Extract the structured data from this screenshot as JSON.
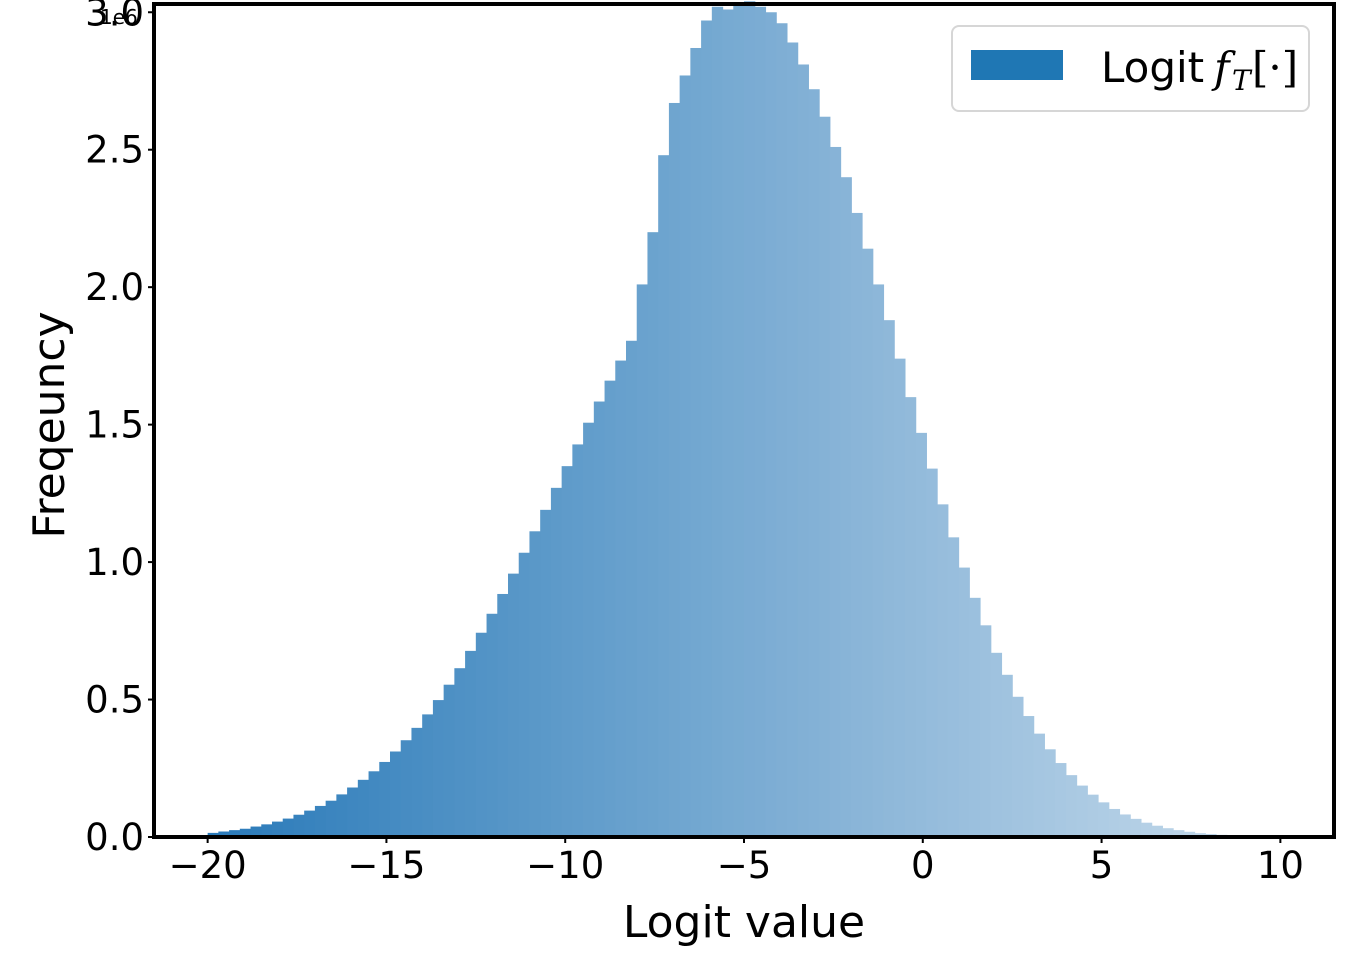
{
  "chart_data": {
    "type": "bar",
    "subtype": "histogram",
    "xlabel": "Logit value",
    "ylabel": "Freqeuncy",
    "y_offset_label": "1e6",
    "xlim": [
      -21.5,
      11.5
    ],
    "ylim": [
      0,
      3.03
    ],
    "x_ticks": [
      -20,
      -15,
      -10,
      -5,
      0,
      5,
      10
    ],
    "x_tick_labels": [
      "−20",
      "−15",
      "−10",
      "−5",
      "0",
      "5",
      "10"
    ],
    "y_ticks": [
      0,
      0.5,
      1.0,
      1.5,
      2.0,
      2.5,
      3.0
    ],
    "y_tick_labels": [
      "0.0",
      "0.5",
      "1.0",
      "1.5",
      "2.0",
      "2.5",
      "3.0"
    ],
    "bin_range": [
      -20,
      10
    ],
    "bin_width": 0.3,
    "values_unit": "1e6",
    "grid": false,
    "legend": {
      "position": "top-right",
      "entries": [
        {
          "label": "Logit",
          "math": "f",
          "math_sub": "T",
          "math_tail": "[·]"
        }
      ]
    },
    "colors": {
      "bar_start": "#2a7ab9",
      "bar_end": "#c8dcec",
      "legend_patch": "#1f77b4"
    },
    "series": [
      {
        "values": [
          0.015,
          0.02,
          0.025,
          0.03,
          0.038,
          0.046,
          0.056,
          0.067,
          0.081,
          0.096,
          0.113,
          0.132,
          0.155,
          0.18,
          0.208,
          0.239,
          0.273,
          0.311,
          0.352,
          0.397,
          0.446,
          0.498,
          0.554,
          0.614,
          0.677,
          0.743,
          0.812,
          0.884,
          0.958,
          1.034,
          1.112,
          1.19,
          1.27,
          1.349,
          1.428,
          1.507,
          1.584,
          1.66,
          1.733,
          1.805,
          2.01,
          2.2,
          2.48,
          2.67,
          2.77,
          2.87,
          2.97,
          3.02,
          3.01,
          3.03,
          3.04,
          3.02,
          3.0,
          2.96,
          2.89,
          2.81,
          2.72,
          2.62,
          2.51,
          2.4,
          2.27,
          2.14,
          2.01,
          1.88,
          1.74,
          1.6,
          1.47,
          1.34,
          1.21,
          1.09,
          0.98,
          0.87,
          0.77,
          0.67,
          0.59,
          0.51,
          0.44,
          0.376,
          0.319,
          0.269,
          0.225,
          0.187,
          0.154,
          0.126,
          0.102,
          0.082,
          0.066,
          0.052,
          0.041,
          0.032,
          0.025,
          0.019,
          0.014,
          0.011,
          0.008,
          0.006,
          0.004,
          0.003,
          0.002,
          0.0015
        ]
      }
    ]
  }
}
